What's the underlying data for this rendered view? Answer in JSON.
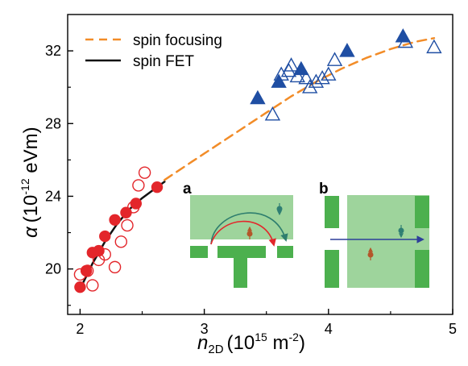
{
  "chart_data": {
    "type": "scatter",
    "title": "",
    "xlabel": {
      "symbol": "n",
      "sub": "2D",
      "unit": "(10",
      "exp": "15",
      "unit2": " m",
      "exp2": "-2",
      "close": ")"
    },
    "ylabel": {
      "symbol": "α",
      "unit": "(10",
      "exp": "-12",
      "unit2": " eVm)"
    },
    "xlim": [
      1.9,
      5.0
    ],
    "ylim": [
      17.5,
      34.0
    ],
    "xticks": [
      2,
      3,
      4,
      5
    ],
    "yticks": [
      20,
      24,
      28,
      32
    ],
    "grid": false,
    "legend": {
      "position": "top-left",
      "entries": [
        {
          "label": "spin focusing",
          "style": "dashed",
          "color": "#f28c28"
        },
        {
          "label": "spin FET",
          "style": "solid",
          "color": "#111111"
        }
      ]
    },
    "series": [
      {
        "color": "#e3262b",
        "marker": "circle",
        "filled": true,
        "x": [
          2.0,
          2.05,
          2.1,
          2.15,
          2.2,
          2.28,
          2.37,
          2.45,
          2.62
        ],
        "y": [
          19.0,
          19.9,
          20.9,
          21.0,
          21.8,
          22.7,
          23.1,
          23.6,
          24.5
        ]
      },
      {
        "color": "#e3262b",
        "marker": "circle",
        "filled": false,
        "x": [
          2.0,
          2.06,
          2.1,
          2.15,
          2.2,
          2.28,
          2.33,
          2.38,
          2.43,
          2.47,
          2.52
        ],
        "y": [
          19.7,
          19.9,
          19.1,
          20.5,
          20.8,
          20.1,
          21.5,
          22.4,
          23.4,
          24.6,
          25.3
        ]
      },
      {
        "color": "#1f4ea3",
        "marker": "triangle",
        "filled": true,
        "x": [
          3.43,
          3.6,
          3.78,
          4.15,
          4.6
        ],
        "y": [
          29.4,
          30.3,
          31.0,
          32.0,
          32.8
        ]
      },
      {
        "color": "#1f4ea3",
        "marker": "triangle",
        "filled": false,
        "x": [
          3.55,
          3.62,
          3.68,
          3.7,
          3.75,
          3.82,
          3.85,
          3.9,
          3.95,
          4.0,
          4.05,
          4.62,
          4.85
        ],
        "y": [
          28.5,
          30.7,
          30.9,
          31.2,
          30.6,
          30.5,
          30.0,
          30.3,
          30.5,
          30.7,
          31.5,
          32.5,
          32.2
        ]
      }
    ],
    "fits": [
      {
        "legend_index": 1,
        "x": [
          2.0,
          2.1,
          2.2,
          2.3,
          2.4,
          2.5,
          2.6,
          2.68
        ],
        "y": [
          18.9,
          20.3,
          21.5,
          22.5,
          23.3,
          23.9,
          24.4,
          24.8
        ]
      },
      {
        "legend_index": 0,
        "x": [
          2.68,
          2.9,
          3.1,
          3.3,
          3.5,
          3.7,
          3.9,
          4.1,
          4.3,
          4.5,
          4.7,
          4.85
        ],
        "y": [
          24.9,
          25.9,
          26.8,
          27.7,
          28.6,
          29.5,
          30.3,
          31.0,
          31.6,
          32.1,
          32.5,
          32.7
        ]
      }
    ]
  },
  "insets": {
    "a_label": "a",
    "b_label": "b"
  },
  "colors": {
    "axis": "#000000",
    "inset_light": "#9ed49c",
    "inset_dark": "#4cb04e",
    "arrow_teal": "#2e7e6e",
    "arrow_red": "#e3262b",
    "arrow_blue": "#2d3e9a",
    "spin_brown": "#b4562a",
    "spin_teal": "#2f7f73"
  }
}
